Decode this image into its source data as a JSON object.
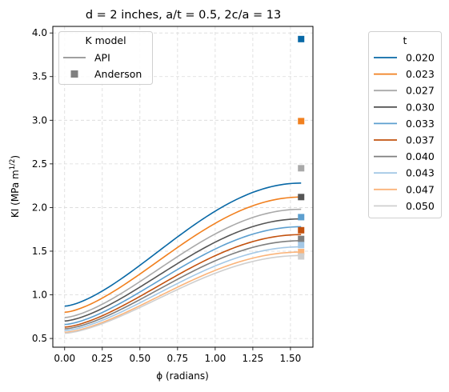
{
  "chart_data": {
    "type": "line",
    "title": "d = 2 inches, a/t = 0.5, 2c/a = 13",
    "xlabel": "ϕ (radians)",
    "ylabel_main": "KI (MPa m",
    "ylabel_sup": "1/2",
    "ylabel_close": ")",
    "xlim": [
      -0.0785,
      1.6493
    ],
    "ylim": [
      0.4,
      4.075
    ],
    "xticks": [
      0.0,
      0.25,
      0.5,
      0.75,
      1.0,
      1.25,
      1.5
    ],
    "xtick_labels": [
      "0.00",
      "0.25",
      "0.50",
      "0.75",
      "1.00",
      "1.25",
      "1.50"
    ],
    "yticks": [
      0.5,
      1.0,
      1.5,
      2.0,
      2.5,
      3.0,
      3.5,
      4.0
    ],
    "ytick_labels": [
      "0.5",
      "1.0",
      "1.5",
      "2.0",
      "2.5",
      "3.0",
      "3.5",
      "4.0"
    ],
    "grid": true,
    "model_legend": {
      "title": "K model",
      "placement": "top-left",
      "items": [
        {
          "label": "API",
          "marker": "line",
          "color": "#808080"
        },
        {
          "label": "Anderson",
          "marker": "square",
          "color": "#808080"
        }
      ]
    },
    "series_legend": {
      "title": "t",
      "placement": "outside-right"
    },
    "series": [
      {
        "name": "0.020",
        "color": "#0868a6",
        "start": 0.87,
        "end": 2.28,
        "anderson": 3.93
      },
      {
        "name": "0.023",
        "color": "#f1801f",
        "start": 0.8,
        "end": 2.12,
        "anderson": 2.99
      },
      {
        "name": "0.027",
        "color": "#a9a9a9",
        "start": 0.74,
        "end": 1.98,
        "anderson": 2.45
      },
      {
        "name": "0.030",
        "color": "#555555",
        "start": 0.7,
        "end": 1.87,
        "anderson": 2.12
      },
      {
        "name": "0.033",
        "color": "#5d9fcf",
        "start": 0.66,
        "end": 1.78,
        "anderson": 1.89
      },
      {
        "name": "0.037",
        "color": "#c3520f",
        "start": 0.63,
        "end": 1.69,
        "anderson": 1.74
      },
      {
        "name": "0.040",
        "color": "#7f7f7f",
        "start": 0.61,
        "end": 1.62,
        "anderson": 1.64
      },
      {
        "name": "0.043",
        "color": "#a4c8e6",
        "start": 0.59,
        "end": 1.55,
        "anderson": 1.57
      },
      {
        "name": "0.047",
        "color": "#fbb47a",
        "start": 0.57,
        "end": 1.49,
        "anderson": 1.49
      },
      {
        "name": "0.050",
        "color": "#cfcfcf",
        "start": 0.56,
        "end": 1.45,
        "anderson": 1.44
      }
    ],
    "anderson_x": 1.5708
  }
}
